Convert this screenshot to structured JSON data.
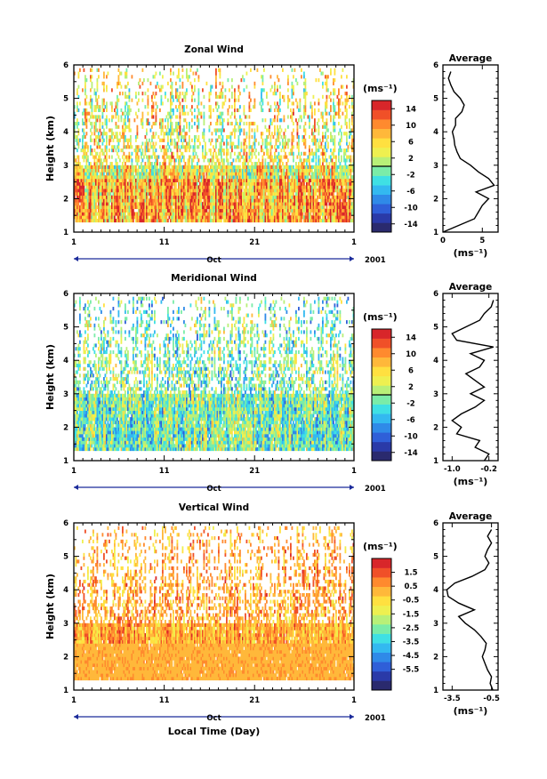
{
  "chart_data": [
    {
      "type": "heatmap",
      "title": "Zonal Wind",
      "ylabel": "Height (km)",
      "ylim": [
        1,
        6
      ],
      "yticks": [
        "1",
        "2",
        "3",
        "4",
        "5",
        "6"
      ],
      "xticks": [
        "1",
        "11",
        "21",
        "1"
      ],
      "month_label": "Oct",
      "year_label": "2001",
      "colorbar_unit": "(ms⁻¹)",
      "colorbar_range": [
        -16,
        16
      ],
      "colorbar_ticks": [
        "14",
        "10",
        "6",
        "2",
        "-2",
        "-6",
        "-10",
        "-14"
      ],
      "colorbar_tick_values": [
        14,
        10,
        6,
        2,
        -2,
        -6,
        -10,
        -14
      ],
      "colorbar_zero": 0,
      "field_bias": 4,
      "field_amp": 9,
      "field_noise": 0.55,
      "average_profile": {
        "title": "Average",
        "xlabel": "(ms⁻¹)",
        "xticks": [
          "0",
          "5"
        ],
        "xtick_values": [
          0,
          5
        ],
        "xlim": [
          0,
          7
        ],
        "height": [
          1.0,
          1.2,
          1.4,
          1.6,
          1.8,
          2.0,
          2.2,
          2.4,
          2.6,
          2.8,
          3.0,
          3.2,
          3.4,
          3.6,
          3.8,
          4.0,
          4.2,
          4.4,
          4.6,
          4.8,
          5.0,
          5.2,
          5.4,
          5.6,
          5.8
        ],
        "value": [
          0.0,
          2.0,
          4.0,
          4.5,
          5.0,
          5.8,
          4.2,
          6.5,
          5.8,
          4.5,
          3.5,
          2.2,
          1.8,
          1.5,
          1.4,
          1.2,
          1.6,
          1.6,
          2.4,
          2.7,
          2.2,
          1.4,
          1.0,
          0.7,
          1.0
        ]
      }
    },
    {
      "type": "heatmap",
      "title": "Meridional Wind",
      "ylabel": "Height (km)",
      "ylim": [
        1,
        6
      ],
      "yticks": [
        "1",
        "2",
        "3",
        "4",
        "5",
        "6"
      ],
      "xticks": [
        "1",
        "11",
        "21",
        "1"
      ],
      "month_label": "Oct",
      "year_label": "2001",
      "colorbar_unit": "(ms⁻¹)",
      "colorbar_range": [
        -16,
        16
      ],
      "colorbar_ticks": [
        "14",
        "10",
        "6",
        "2",
        "-2",
        "-6",
        "-10",
        "-14"
      ],
      "colorbar_tick_values": [
        14,
        10,
        6,
        2,
        -2,
        -6,
        -10,
        -14
      ],
      "colorbar_zero": 0,
      "field_bias": -1,
      "field_amp": 7,
      "field_noise": 0.75,
      "average_profile": {
        "title": "Average",
        "xlabel": "(ms⁻¹)",
        "xticks": [
          "-1.0",
          "-0.2"
        ],
        "xtick_values": [
          -1.0,
          -0.2
        ],
        "xlim": [
          -1.2,
          0.0
        ],
        "height": [
          1.0,
          1.2,
          1.4,
          1.6,
          1.8,
          2.0,
          2.2,
          2.4,
          2.6,
          2.8,
          3.0,
          3.2,
          3.4,
          3.6,
          3.8,
          4.0,
          4.2,
          4.4,
          4.6,
          4.8,
          5.0,
          5.2,
          5.4,
          5.6,
          5.8
        ],
        "value": [
          -0.3,
          -0.2,
          -0.5,
          -0.4,
          -0.9,
          -0.8,
          -1.0,
          -0.8,
          -0.5,
          -0.3,
          -0.6,
          -0.3,
          -0.5,
          -0.7,
          -0.4,
          -0.3,
          -0.6,
          -0.1,
          -0.9,
          -1.0,
          -0.7,
          -0.4,
          -0.3,
          -0.15,
          -0.1
        ]
      }
    },
    {
      "type": "heatmap",
      "title": "Vertical Wind",
      "xlabel": "Local Time (Day)",
      "ylabel": "Height (km)",
      "ylim": [
        1,
        6
      ],
      "yticks": [
        "1",
        "2",
        "3",
        "4",
        "5",
        "6"
      ],
      "xticks": [
        "1",
        "11",
        "21",
        "1"
      ],
      "month_label": "Oct",
      "year_label": "2001",
      "colorbar_unit": "(ms⁻¹)",
      "colorbar_range": [
        -7,
        2.5
      ],
      "colorbar_ticks": [
        "1.5",
        "0.5",
        "-0.5",
        "-1.5",
        "-2.5",
        "-3.5",
        "-4.5",
        "-5.5"
      ],
      "colorbar_tick_values": [
        1.5,
        0.5,
        -0.5,
        -1.5,
        -2.5,
        -3.5,
        -4.5,
        -5.5
      ],
      "colorbar_zero": null,
      "field_bias": 0.3,
      "field_amp": 1.4,
      "field_noise": 0.6,
      "average_profile": {
        "title": "Average",
        "xlabel": "(ms⁻¹)",
        "xticks": [
          "-3.5",
          "-0.5"
        ],
        "xtick_values": [
          -3.5,
          -0.5
        ],
        "xlim": [
          -4.2,
          0.0
        ],
        "height": [
          1.0,
          1.2,
          1.4,
          1.6,
          1.8,
          2.0,
          2.2,
          2.4,
          2.6,
          2.8,
          3.0,
          3.2,
          3.4,
          3.6,
          3.8,
          4.0,
          4.2,
          4.4,
          4.6,
          4.8,
          5.0,
          5.2,
          5.4,
          5.6,
          5.8
        ],
        "value": [
          -0.4,
          -0.6,
          -0.5,
          -0.8,
          -1.0,
          -1.2,
          -1.0,
          -0.9,
          -1.3,
          -1.8,
          -2.5,
          -3.0,
          -1.8,
          -3.0,
          -3.8,
          -3.9,
          -3.3,
          -2.0,
          -1.0,
          -0.7,
          -1.0,
          -0.8,
          -0.5,
          -0.8,
          -0.5
        ]
      }
    }
  ],
  "colors": {
    "palette": [
      "#2a2a6e",
      "#2a3aa8",
      "#2f5fd8",
      "#2f8ae8",
      "#33b9f0",
      "#3fe0e4",
      "#7aeca8",
      "#b8f078",
      "#eef050",
      "#ffe040",
      "#ffb83a",
      "#ff8a2e",
      "#f05028",
      "#d8262a"
    ]
  }
}
